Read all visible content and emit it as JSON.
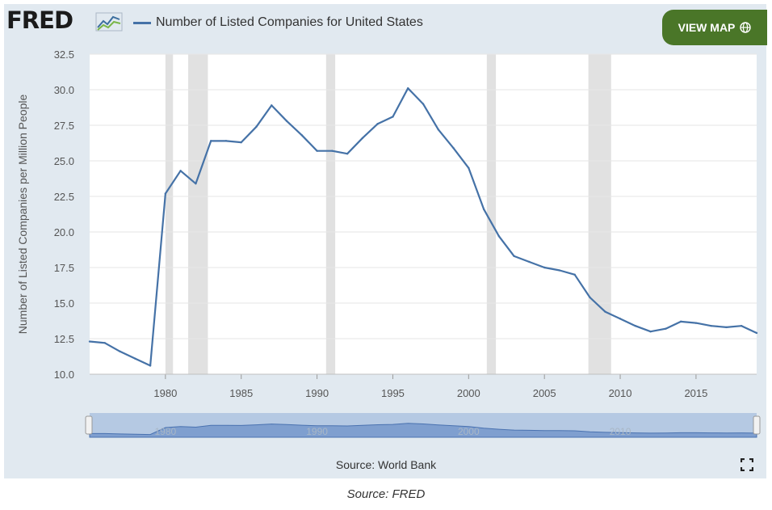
{
  "header": {
    "logo_text": "FRED",
    "series_title": "Number of Listed Companies for United States",
    "view_map_label": "VIEW MAP"
  },
  "footer": {
    "source_label": "Source: World Bank"
  },
  "caption": "Source: FRED",
  "colors": {
    "line": "#4572a7",
    "recession": "#e1e1e1",
    "panel": "#e1e9f0",
    "view_map_button": "#4a7628"
  },
  "icons": {
    "logo_mark": "fred-chart-icon",
    "view_map": "globe-icon",
    "fullscreen": "fullscreen-icon"
  },
  "navigator": {
    "tick_labels": [
      "1980",
      "1990",
      "2000",
      "2010"
    ]
  },
  "chart_data": {
    "type": "line",
    "title": "Number of Listed Companies for United States",
    "xlabel": "",
    "ylabel": "Number of Listed Companies per Million People",
    "xlim": [
      1975,
      2019
    ],
    "ylim": [
      10.0,
      32.5
    ],
    "y_ticks": [
      "10.0",
      "12.5",
      "15.0",
      "17.5",
      "20.0",
      "22.5",
      "25.0",
      "27.5",
      "30.0",
      "32.5"
    ],
    "x_ticks": [
      "1980",
      "1985",
      "1990",
      "1995",
      "2000",
      "2005",
      "2010",
      "2015"
    ],
    "grid": true,
    "recessions": [
      [
        1980.0,
        1980.5
      ],
      [
        1981.5,
        1982.8
      ],
      [
        1990.6,
        1991.2
      ],
      [
        2001.2,
        2001.8
      ],
      [
        2007.9,
        2009.4
      ]
    ],
    "series": [
      {
        "x": [
          1975,
          1976,
          1977,
          1978,
          1979,
          1980,
          1981,
          1982,
          1983,
          1984,
          1985,
          1986,
          1987,
          1988,
          1989,
          1990,
          1991,
          1992,
          1993,
          1994,
          1995,
          1996,
          1997,
          1998,
          1999,
          2000,
          2001,
          2002,
          2003,
          2004,
          2005,
          2006,
          2007,
          2008,
          2009,
          2010,
          2011,
          2012,
          2013,
          2014,
          2015,
          2016,
          2017,
          2018,
          2019
        ],
        "values": [
          12.3,
          12.2,
          11.6,
          11.1,
          10.6,
          22.7,
          24.3,
          23.4,
          26.4,
          26.4,
          26.3,
          27.4,
          28.9,
          27.8,
          26.8,
          25.7,
          25.7,
          25.5,
          26.6,
          27.6,
          28.1,
          30.1,
          29.0,
          27.2,
          25.9,
          24.5,
          21.6,
          19.7,
          18.3,
          17.9,
          17.5,
          17.3,
          17.0,
          15.4,
          14.4,
          13.9,
          13.4,
          13.0,
          13.2,
          13.7,
          13.6,
          13.4,
          13.3,
          13.4,
          12.9
        ]
      }
    ]
  }
}
